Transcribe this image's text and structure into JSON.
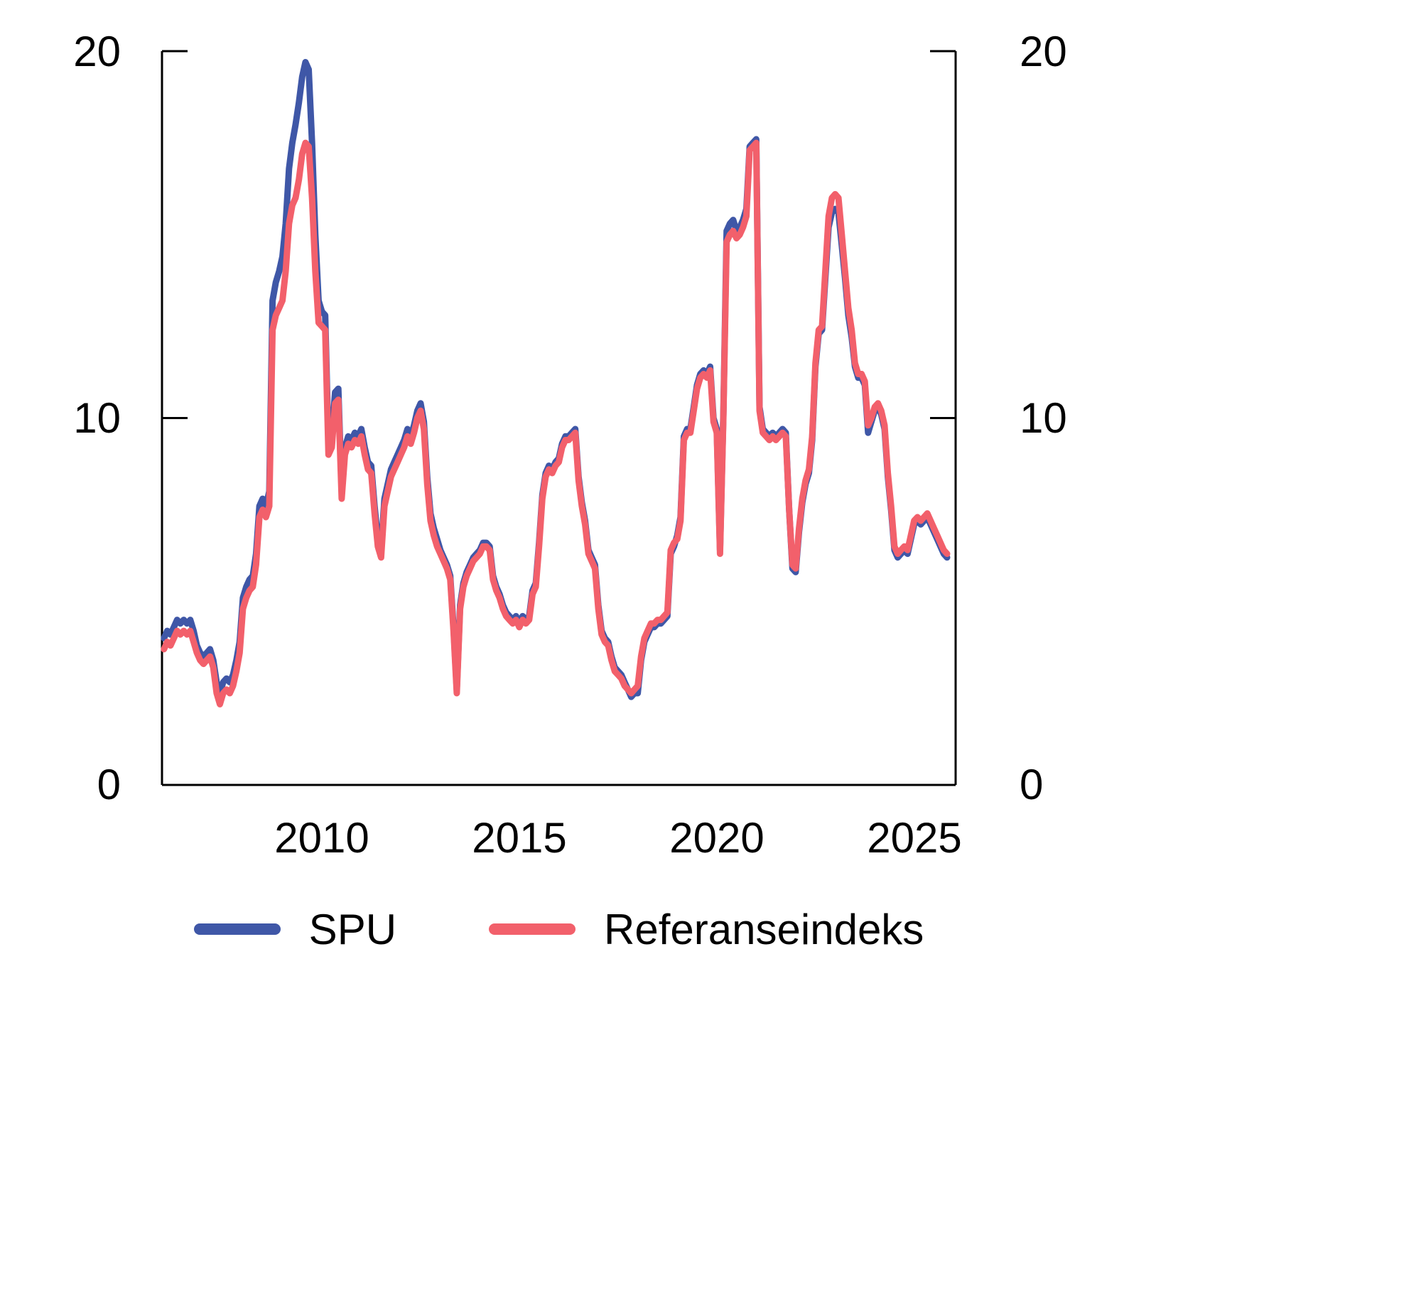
{
  "axes": {
    "y_ticks": [
      "20",
      "10",
      "0"
    ],
    "x_ticks": [
      "2010",
      "2015",
      "2020",
      "2025"
    ]
  },
  "legend": [
    {
      "label": "SPU",
      "color": "#3f57a7"
    },
    {
      "label": "Referanseindeks",
      "color": "#f2606b"
    }
  ],
  "chart_data": {
    "type": "line",
    "title": "",
    "xlabel": "",
    "ylabel": "",
    "grid": false,
    "legend_position": "bottom",
    "ylim": [
      0,
      20
    ],
    "xlim": [
      2005.95,
      2026.05
    ],
    "y_tick_values": [
      0,
      10,
      20
    ],
    "x_tick_values": [
      2010,
      2015,
      2020,
      2025
    ],
    "x_start": 2006.0,
    "x_step_years": 0.0833333,
    "series": [
      {
        "name": "SPU",
        "color": "#3f57a7",
        "values": [
          4.0,
          4.2,
          4.1,
          4.3,
          4.5,
          4.4,
          4.5,
          4.4,
          4.5,
          4.2,
          3.8,
          3.6,
          3.5,
          3.6,
          3.7,
          3.4,
          2.8,
          2.5,
          2.8,
          2.9,
          2.8,
          3.0,
          3.4,
          3.9,
          5.1,
          5.4,
          5.6,
          5.7,
          6.3,
          7.6,
          7.8,
          7.6,
          8.0,
          13.2,
          13.7,
          14.0,
          14.4,
          15.3,
          16.8,
          17.5,
          18.0,
          18.6,
          19.3,
          19.7,
          19.5,
          17.5,
          15.0,
          13.2,
          12.9,
          12.8,
          9.3,
          9.5,
          10.7,
          10.8,
          8.0,
          9.2,
          9.5,
          9.4,
          9.6,
          9.5,
          9.7,
          9.2,
          8.8,
          8.7,
          7.6,
          6.7,
          6.4,
          7.8,
          8.2,
          8.6,
          8.8,
          9.0,
          9.2,
          9.4,
          9.7,
          9.5,
          9.8,
          10.2,
          10.4,
          9.9,
          8.4,
          7.4,
          7.0,
          6.7,
          6.4,
          6.2,
          6.0,
          5.7,
          4.3,
          2.6,
          4.9,
          5.5,
          5.8,
          6.0,
          6.2,
          6.3,
          6.4,
          6.6,
          6.6,
          6.5,
          5.7,
          5.4,
          5.2,
          4.9,
          4.7,
          4.6,
          4.5,
          4.6,
          4.4,
          4.6,
          4.5,
          4.6,
          5.3,
          5.5,
          6.6,
          7.9,
          8.5,
          8.7,
          8.6,
          8.8,
          8.9,
          9.3,
          9.5,
          9.5,
          9.6,
          9.7,
          8.4,
          7.7,
          7.2,
          6.4,
          6.2,
          6.0,
          4.9,
          4.2,
          4.0,
          3.9,
          3.5,
          3.2,
          3.1,
          3.0,
          2.8,
          2.6,
          2.4,
          2.5,
          2.5,
          3.4,
          3.9,
          4.1,
          4.3,
          4.3,
          4.4,
          4.4,
          4.5,
          4.6,
          6.3,
          6.5,
          6.8,
          7.3,
          9.5,
          9.7,
          9.7,
          10.3,
          10.9,
          11.2,
          11.3,
          11.2,
          11.4,
          10.0,
          9.7,
          6.4,
          10.1,
          15.1,
          15.3,
          15.4,
          15.1,
          15.2,
          15.4,
          15.7,
          17.4,
          17.5,
          17.6,
          10.3,
          9.7,
          9.6,
          9.5,
          9.6,
          9.5,
          9.6,
          9.7,
          9.6,
          7.5,
          5.9,
          5.8,
          6.9,
          7.7,
          8.2,
          8.5,
          9.4,
          11.4,
          12.3,
          12.4,
          13.8,
          15.2,
          15.6,
          15.7,
          15.6,
          14.7,
          13.8,
          12.8,
          12.2,
          11.4,
          11.1,
          11.1,
          10.9,
          9.6,
          9.9,
          10.2,
          10.3,
          10.1,
          9.7,
          8.4,
          7.5,
          6.4,
          6.2,
          6.3,
          6.4,
          6.3,
          6.7,
          7.1,
          7.2,
          7.1,
          7.2,
          7.3,
          7.1,
          6.9,
          6.7,
          6.5,
          6.3,
          6.2
        ]
      },
      {
        "name": "Referanseindeks",
        "color": "#f2606b",
        "values": [
          3.7,
          3.9,
          3.8,
          4.0,
          4.2,
          4.1,
          4.2,
          4.1,
          4.2,
          3.9,
          3.6,
          3.4,
          3.3,
          3.4,
          3.5,
          3.2,
          2.5,
          2.2,
          2.5,
          2.6,
          2.5,
          2.7,
          3.1,
          3.6,
          4.8,
          5.1,
          5.3,
          5.4,
          6.0,
          7.3,
          7.5,
          7.3,
          7.6,
          12.4,
          12.8,
          13.0,
          13.2,
          14.0,
          15.3,
          15.8,
          16.0,
          16.5,
          17.2,
          17.5,
          17.4,
          16.0,
          14.0,
          12.6,
          12.5,
          12.4,
          9.0,
          9.2,
          10.4,
          10.5,
          7.8,
          9.0,
          9.3,
          9.2,
          9.4,
          9.3,
          9.5,
          9.0,
          8.6,
          8.5,
          7.4,
          6.5,
          6.2,
          7.6,
          8.0,
          8.4,
          8.6,
          8.8,
          9.0,
          9.2,
          9.5,
          9.3,
          9.6,
          10.0,
          10.2,
          9.7,
          8.2,
          7.2,
          6.8,
          6.5,
          6.3,
          6.1,
          5.9,
          5.6,
          4.2,
          2.5,
          4.8,
          5.4,
          5.7,
          5.9,
          6.1,
          6.2,
          6.3,
          6.5,
          6.5,
          6.4,
          5.6,
          5.3,
          5.1,
          4.8,
          4.6,
          4.5,
          4.4,
          4.5,
          4.3,
          4.5,
          4.4,
          4.5,
          5.2,
          5.4,
          6.5,
          7.8,
          8.4,
          8.6,
          8.5,
          8.7,
          8.8,
          9.2,
          9.4,
          9.4,
          9.5,
          9.6,
          8.3,
          7.6,
          7.1,
          6.3,
          6.1,
          5.9,
          4.8,
          4.1,
          3.9,
          3.8,
          3.4,
          3.1,
          3.0,
          2.9,
          2.7,
          2.6,
          2.5,
          2.6,
          2.7,
          3.5,
          4.0,
          4.2,
          4.4,
          4.4,
          4.5,
          4.5,
          4.6,
          4.7,
          6.4,
          6.6,
          6.7,
          7.2,
          9.4,
          9.6,
          9.6,
          10.2,
          10.8,
          11.1,
          11.2,
          11.1,
          11.3,
          9.9,
          9.6,
          6.3,
          10.0,
          14.8,
          15.0,
          15.1,
          14.9,
          15.0,
          15.2,
          15.5,
          17.3,
          17.4,
          17.5,
          10.2,
          9.6,
          9.5,
          9.4,
          9.5,
          9.4,
          9.5,
          9.6,
          9.5,
          7.5,
          6.0,
          5.9,
          7.0,
          7.8,
          8.3,
          8.6,
          9.5,
          11.5,
          12.4,
          12.5,
          14.0,
          15.5,
          16.0,
          16.1,
          16.0,
          15.0,
          14.0,
          13.0,
          12.4,
          11.5,
          11.2,
          11.2,
          11.0,
          9.8,
          10.0,
          10.3,
          10.4,
          10.2,
          9.8,
          8.5,
          7.6,
          6.5,
          6.3,
          6.4,
          6.5,
          6.4,
          6.8,
          7.2,
          7.3,
          7.2,
          7.3,
          7.4,
          7.2,
          7.0,
          6.8,
          6.6,
          6.4,
          6.3
        ]
      }
    ]
  }
}
